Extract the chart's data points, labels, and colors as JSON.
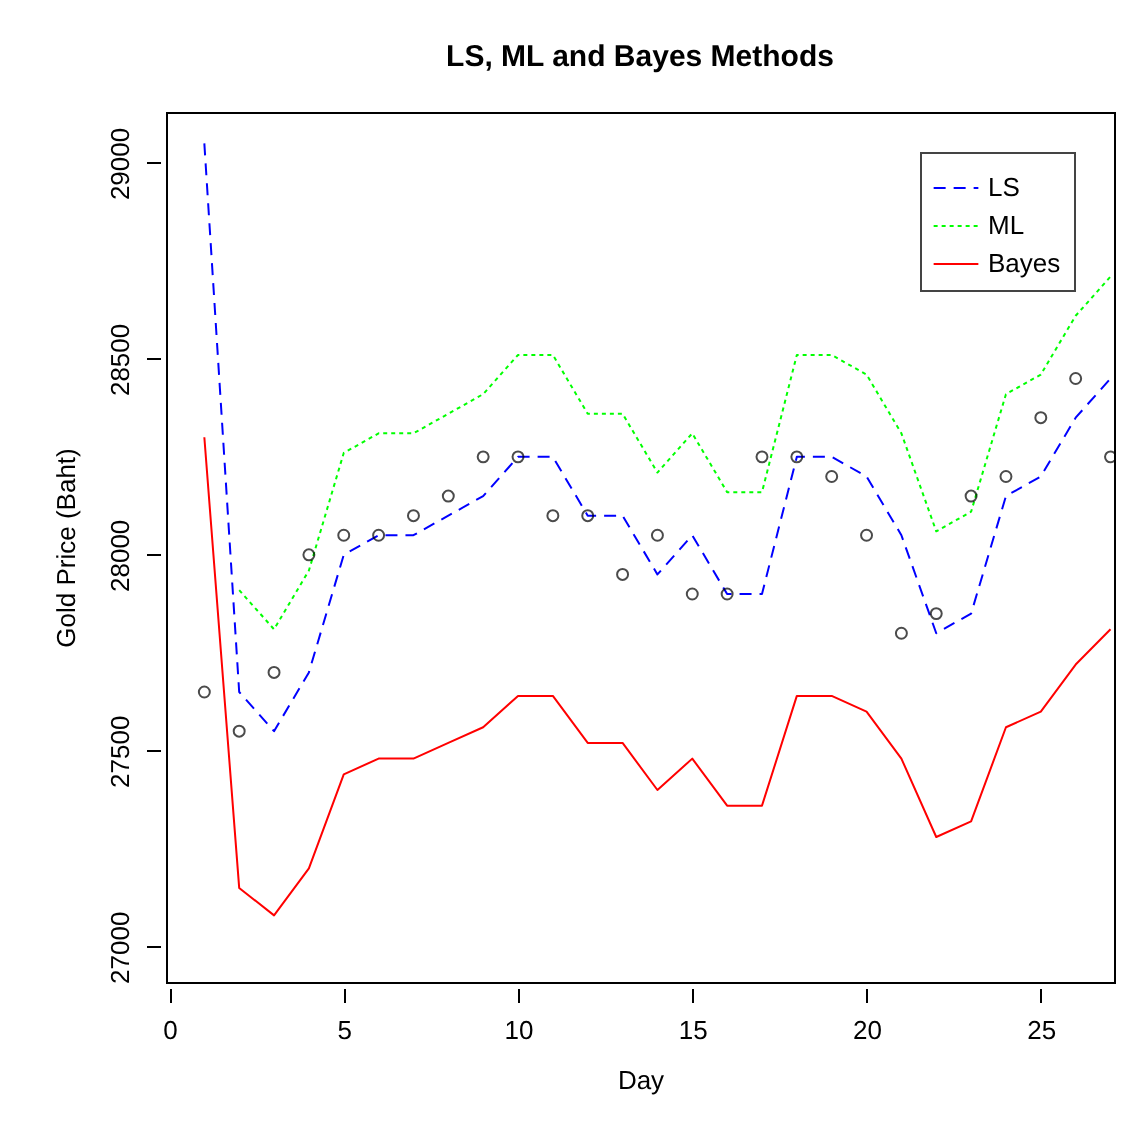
{
  "chart_data": {
    "type": "line",
    "title": "LS,  ML and Bayes Methods",
    "xlabel": "Day",
    "ylabel": "Gold Price (Baht)",
    "x": [
      1,
      2,
      3,
      4,
      5,
      6,
      7,
      8,
      9,
      10,
      11,
      12,
      13,
      14,
      15,
      16,
      17,
      18,
      19,
      20,
      21,
      22,
      23,
      24,
      25,
      26,
      27
    ],
    "series": [
      {
        "type": "scatter",
        "marker": "circle",
        "color": "#000000",
        "values": [
          27650,
          27550,
          27700,
          28000,
          28050,
          28050,
          28100,
          28150,
          28250,
          28250,
          28100,
          28100,
          27950,
          28050,
          27900,
          27900,
          28250,
          28250,
          28200,
          28050,
          27800,
          27850,
          28150,
          28200,
          28350,
          28450,
          28250
        ]
      },
      {
        "name": "LS",
        "color": "#0000ff",
        "line_style": "dashed",
        "values": [
          29050,
          27650,
          27550,
          27700,
          28000,
          28050,
          28050,
          28100,
          28150,
          28250,
          28250,
          28100,
          28100,
          27950,
          28050,
          27900,
          27900,
          28250,
          28250,
          28200,
          28050,
          27800,
          27850,
          28150,
          28200,
          28350,
          28450
        ]
      },
      {
        "name": "ML",
        "color": "#00ff00",
        "line_style": "dotted",
        "values": [
          null,
          27910,
          27810,
          27960,
          28260,
          28310,
          28310,
          28360,
          28410,
          28510,
          28510,
          28360,
          28360,
          28210,
          28310,
          28160,
          28160,
          28510,
          28510,
          28460,
          28310,
          28060,
          28110,
          28410,
          28460,
          28610,
          28710
        ]
      },
      {
        "name": "Bayes",
        "color": "#ff0000",
        "line_style": "solid",
        "values": [
          28300,
          27150,
          27080,
          27200,
          27440,
          27480,
          27480,
          27520,
          27560,
          27640,
          27640,
          27520,
          27520,
          27400,
          27480,
          27360,
          27360,
          27640,
          27640,
          27600,
          27480,
          27280,
          27320,
          27560,
          27600,
          27720,
          27810
        ]
      }
    ],
    "xlim": [
      -0.1,
      27.1
    ],
    "ylim": [
      26910,
      29130
    ],
    "xticks": [
      0,
      5,
      10,
      15,
      20,
      25
    ],
    "yticks": [
      27000,
      27500,
      28000,
      28500,
      29000
    ],
    "grid": false,
    "legend": "top right"
  }
}
